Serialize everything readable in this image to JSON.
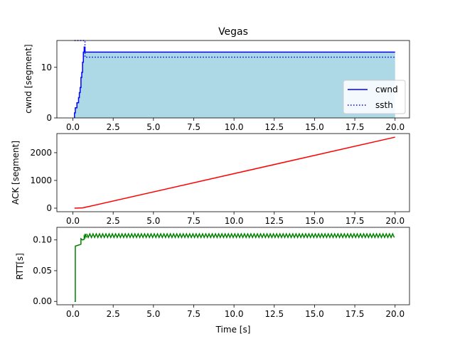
{
  "figure": {
    "title": "Vegas",
    "xlabel": "Time [s]"
  },
  "chart_data": [
    {
      "type": "line",
      "id": "cwnd",
      "title": "Vegas",
      "ylabel": "cwnd [segment]",
      "xlim": [
        -0.995,
        20.895
      ],
      "ylim": [
        0,
        15.3
      ],
      "xticks": [
        0.0,
        2.5,
        5.0,
        7.5,
        10.0,
        12.5,
        15.0,
        17.5,
        20.0
      ],
      "xtick_labels": [
        "0.0",
        "2.5",
        "5.0",
        "7.5",
        "10.0",
        "12.5",
        "15.0",
        "17.5",
        "20.0"
      ],
      "yticks": [
        0,
        10
      ],
      "ytick_labels": [
        "0",
        "10"
      ],
      "legend": {
        "position": "right",
        "entries": [
          "cwnd",
          "ssth"
        ]
      },
      "fill_color": "#add8e6",
      "series": [
        {
          "name": "cwnd",
          "style": "solid",
          "color": "#0000ff",
          "x": [
            0.1,
            0.1,
            0.15,
            0.15,
            0.2,
            0.2,
            0.25,
            0.25,
            0.3,
            0.3,
            0.35,
            0.35,
            0.4,
            0.4,
            0.45,
            0.45,
            0.5,
            0.5,
            0.55,
            0.55,
            0.6,
            0.6,
            0.65,
            0.65,
            0.7,
            0.7,
            0.75,
            0.75,
            20.0
          ],
          "y": [
            0,
            1,
            1,
            2,
            2,
            2,
            2,
            3,
            3,
            3,
            3,
            4,
            4,
            5,
            5,
            6,
            6,
            8,
            8,
            9,
            9,
            11,
            11,
            13,
            13,
            14,
            14,
            13,
            13
          ]
        },
        {
          "name": "ssth",
          "style": "dotted",
          "color": "#0000ff",
          "x": [
            0.1,
            0.1,
            0.7,
            0.7,
            0.75,
            0.75,
            20.0
          ],
          "y": [
            15.3,
            15.3,
            15.3,
            15.3,
            15.3,
            12,
            12
          ]
        }
      ]
    },
    {
      "type": "line",
      "id": "ack",
      "ylabel": "ACK [segment]",
      "xlim": [
        -0.995,
        20.895
      ],
      "ylim": [
        -128,
        2690
      ],
      "xticks": [
        0.0,
        2.5,
        5.0,
        7.5,
        10.0,
        12.5,
        15.0,
        17.5,
        20.0
      ],
      "xtick_labels": [
        "0.0",
        "2.5",
        "5.0",
        "7.5",
        "10.0",
        "12.5",
        "15.0",
        "17.5",
        "20.0"
      ],
      "yticks": [
        0,
        1000,
        2000
      ],
      "ytick_labels": [
        "0",
        "1000",
        "2000"
      ],
      "series": [
        {
          "color": "#ff0000",
          "x": [
            0.1,
            0.6,
            1.0,
            20.0
          ],
          "y": [
            0,
            10,
            60,
            2560
          ]
        }
      ]
    },
    {
      "type": "line",
      "id": "rtt",
      "ylabel": "RTT[s]",
      "xlabel": "Time [s]",
      "xlim": [
        -0.995,
        20.895
      ],
      "ylim": [
        -0.0055,
        0.1205
      ],
      "xticks": [
        0.0,
        2.5,
        5.0,
        7.5,
        10.0,
        12.5,
        15.0,
        17.5,
        20.0
      ],
      "xtick_labels": [
        "0.0",
        "2.5",
        "5.0",
        "7.5",
        "10.0",
        "12.5",
        "15.0",
        "17.5",
        "20.0"
      ],
      "yticks": [
        0.0,
        0.05,
        0.1
      ],
      "ytick_labels": [
        "0.00",
        "0.05",
        "0.10"
      ],
      "series": [
        {
          "color": "#008000",
          "x": [
            0.1,
            0.15,
            0.15,
            0.4,
            0.4,
            0.5,
            0.5,
            0.6,
            0.6,
            0.7,
            0.7,
            0.75,
            0.75,
            0.85
          ],
          "y": [
            0.0,
            0.0,
            0.09,
            0.092,
            0.092,
            0.093,
            0.102,
            0.1,
            0.1,
            0.101,
            0.106,
            0.104,
            0.11,
            0.104
          ]
        }
      ],
      "oscillation": {
        "x_start": 0.85,
        "x_end": 20.0,
        "y_low": 0.104,
        "y_high": 0.11,
        "step": 0.1
      }
    }
  ]
}
